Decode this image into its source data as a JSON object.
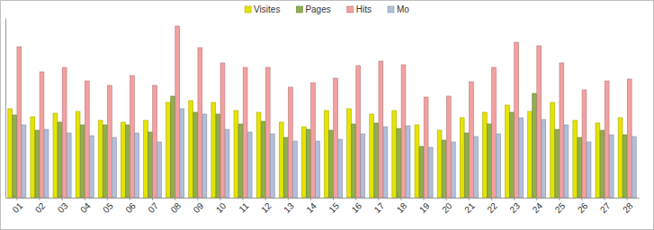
{
  "chart_data": {
    "type": "bar",
    "categories": [
      "01",
      "02",
      "03",
      "04",
      "05",
      "06",
      "07",
      "08",
      "09",
      "10",
      "11",
      "12",
      "13",
      "14",
      "15",
      "16",
      "17",
      "18",
      "19",
      "20",
      "21",
      "22",
      "23",
      "24",
      "25",
      "26",
      "27",
      "28"
    ],
    "series": [
      {
        "name": "Visites",
        "color": "#e4e400",
        "values": [
          99,
          90,
          94,
          96,
          86,
          84,
          86,
          106,
          108,
          106,
          97,
          95,
          84,
          79,
          97,
          99,
          93,
          97,
          81,
          75,
          89,
          95,
          103,
          96,
          106,
          86,
          83,
          89
        ]
      },
      {
        "name": "Pages",
        "color": "#8fae4e",
        "values": [
          92,
          75,
          84,
          81,
          81,
          81,
          73,
          113,
          95,
          93,
          82,
          85,
          67,
          76,
          75,
          82,
          83,
          77,
          57,
          64,
          72,
          82,
          95,
          116,
          76,
          67,
          75,
          70
        ]
      },
      {
        "name": "Hits",
        "color": "#f3a0a0",
        "values": [
          168,
          140,
          145,
          130,
          125,
          136,
          125,
          191,
          167,
          150,
          145,
          145,
          123,
          128,
          133,
          147,
          152,
          148,
          112,
          113,
          129,
          145,
          173,
          169,
          150,
          120,
          130,
          132
        ]
      },
      {
        "name": "Mo",
        "color": "#b3bfd9",
        "values": [
          81,
          76,
          72,
          69,
          67,
          72,
          62,
          99,
          93,
          76,
          73,
          71,
          63,
          63,
          65,
          71,
          79,
          80,
          56,
          62,
          68,
          71,
          89,
          87,
          81,
          62,
          70,
          68
        ]
      }
    ],
    "ylim": [
      0,
      200
    ],
    "tick_labels": "x",
    "legend": "top"
  }
}
